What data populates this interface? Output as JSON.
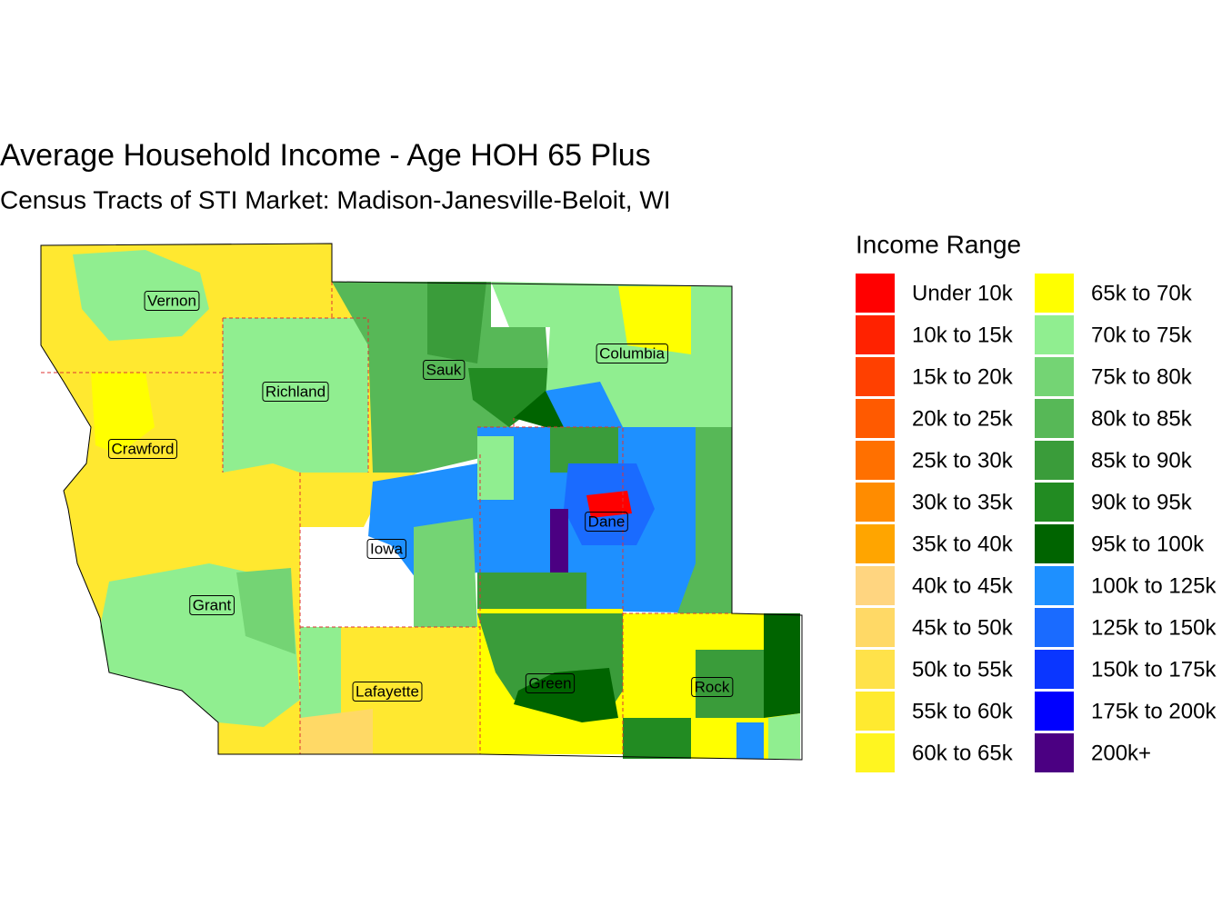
{
  "header": {
    "title": "Average Household Income - Age HOH 65 Plus",
    "subtitle": "Census Tracts of STI Market: Madison-Janesville-Beloit, WI"
  },
  "legend": {
    "title": "Income Range",
    "items": [
      {
        "label": "Under 10k",
        "color": "#FF0000"
      },
      {
        "label": "10k to 15k",
        "color": "#FF2200"
      },
      {
        "label": "15k to 20k",
        "color": "#FF4000"
      },
      {
        "label": "20k to 25k",
        "color": "#FF5A00"
      },
      {
        "label": "25k to 30k",
        "color": "#FF7000"
      },
      {
        "label": "30k to 35k",
        "color": "#FF8C00"
      },
      {
        "label": "35k to 40k",
        "color": "#FFA500"
      },
      {
        "label": "40k to 45k",
        "color": "#FFD580"
      },
      {
        "label": "45k to 50k",
        "color": "#FFD966"
      },
      {
        "label": "50k to 55k",
        "color": "#FFE24A"
      },
      {
        "label": "55k to 60k",
        "color": "#FFEA30"
      },
      {
        "label": "60k to 65k",
        "color": "#FFF520"
      },
      {
        "label": "65k to 70k",
        "color": "#FFFF00"
      },
      {
        "label": "70k to 75k",
        "color": "#90EE90"
      },
      {
        "label": "75k to 80k",
        "color": "#74D474"
      },
      {
        "label": "80k to 85k",
        "color": "#57B857"
      },
      {
        "label": "85k to 90k",
        "color": "#3A9C3A"
      },
      {
        "label": "90k to 95k",
        "color": "#228B22"
      },
      {
        "label": "95k to 100k",
        "color": "#006400"
      },
      {
        "label": "100k to 125k",
        "color": "#1E90FF"
      },
      {
        "label": "125k to 150k",
        "color": "#1A6BFF"
      },
      {
        "label": "150k to 175k",
        "color": "#0A36FF"
      },
      {
        "label": "175k to 200k",
        "color": "#0000FF"
      },
      {
        "label": "200k+",
        "color": "#4B0082"
      }
    ]
  },
  "counties": [
    {
      "name": "Vernon"
    },
    {
      "name": "Richland"
    },
    {
      "name": "Sauk"
    },
    {
      "name": "Columbia"
    },
    {
      "name": "Crawford"
    },
    {
      "name": "Iowa"
    },
    {
      "name": "Dane"
    },
    {
      "name": "Grant"
    },
    {
      "name": "Lafayette"
    },
    {
      "name": "Green"
    },
    {
      "name": "Rock"
    }
  ]
}
